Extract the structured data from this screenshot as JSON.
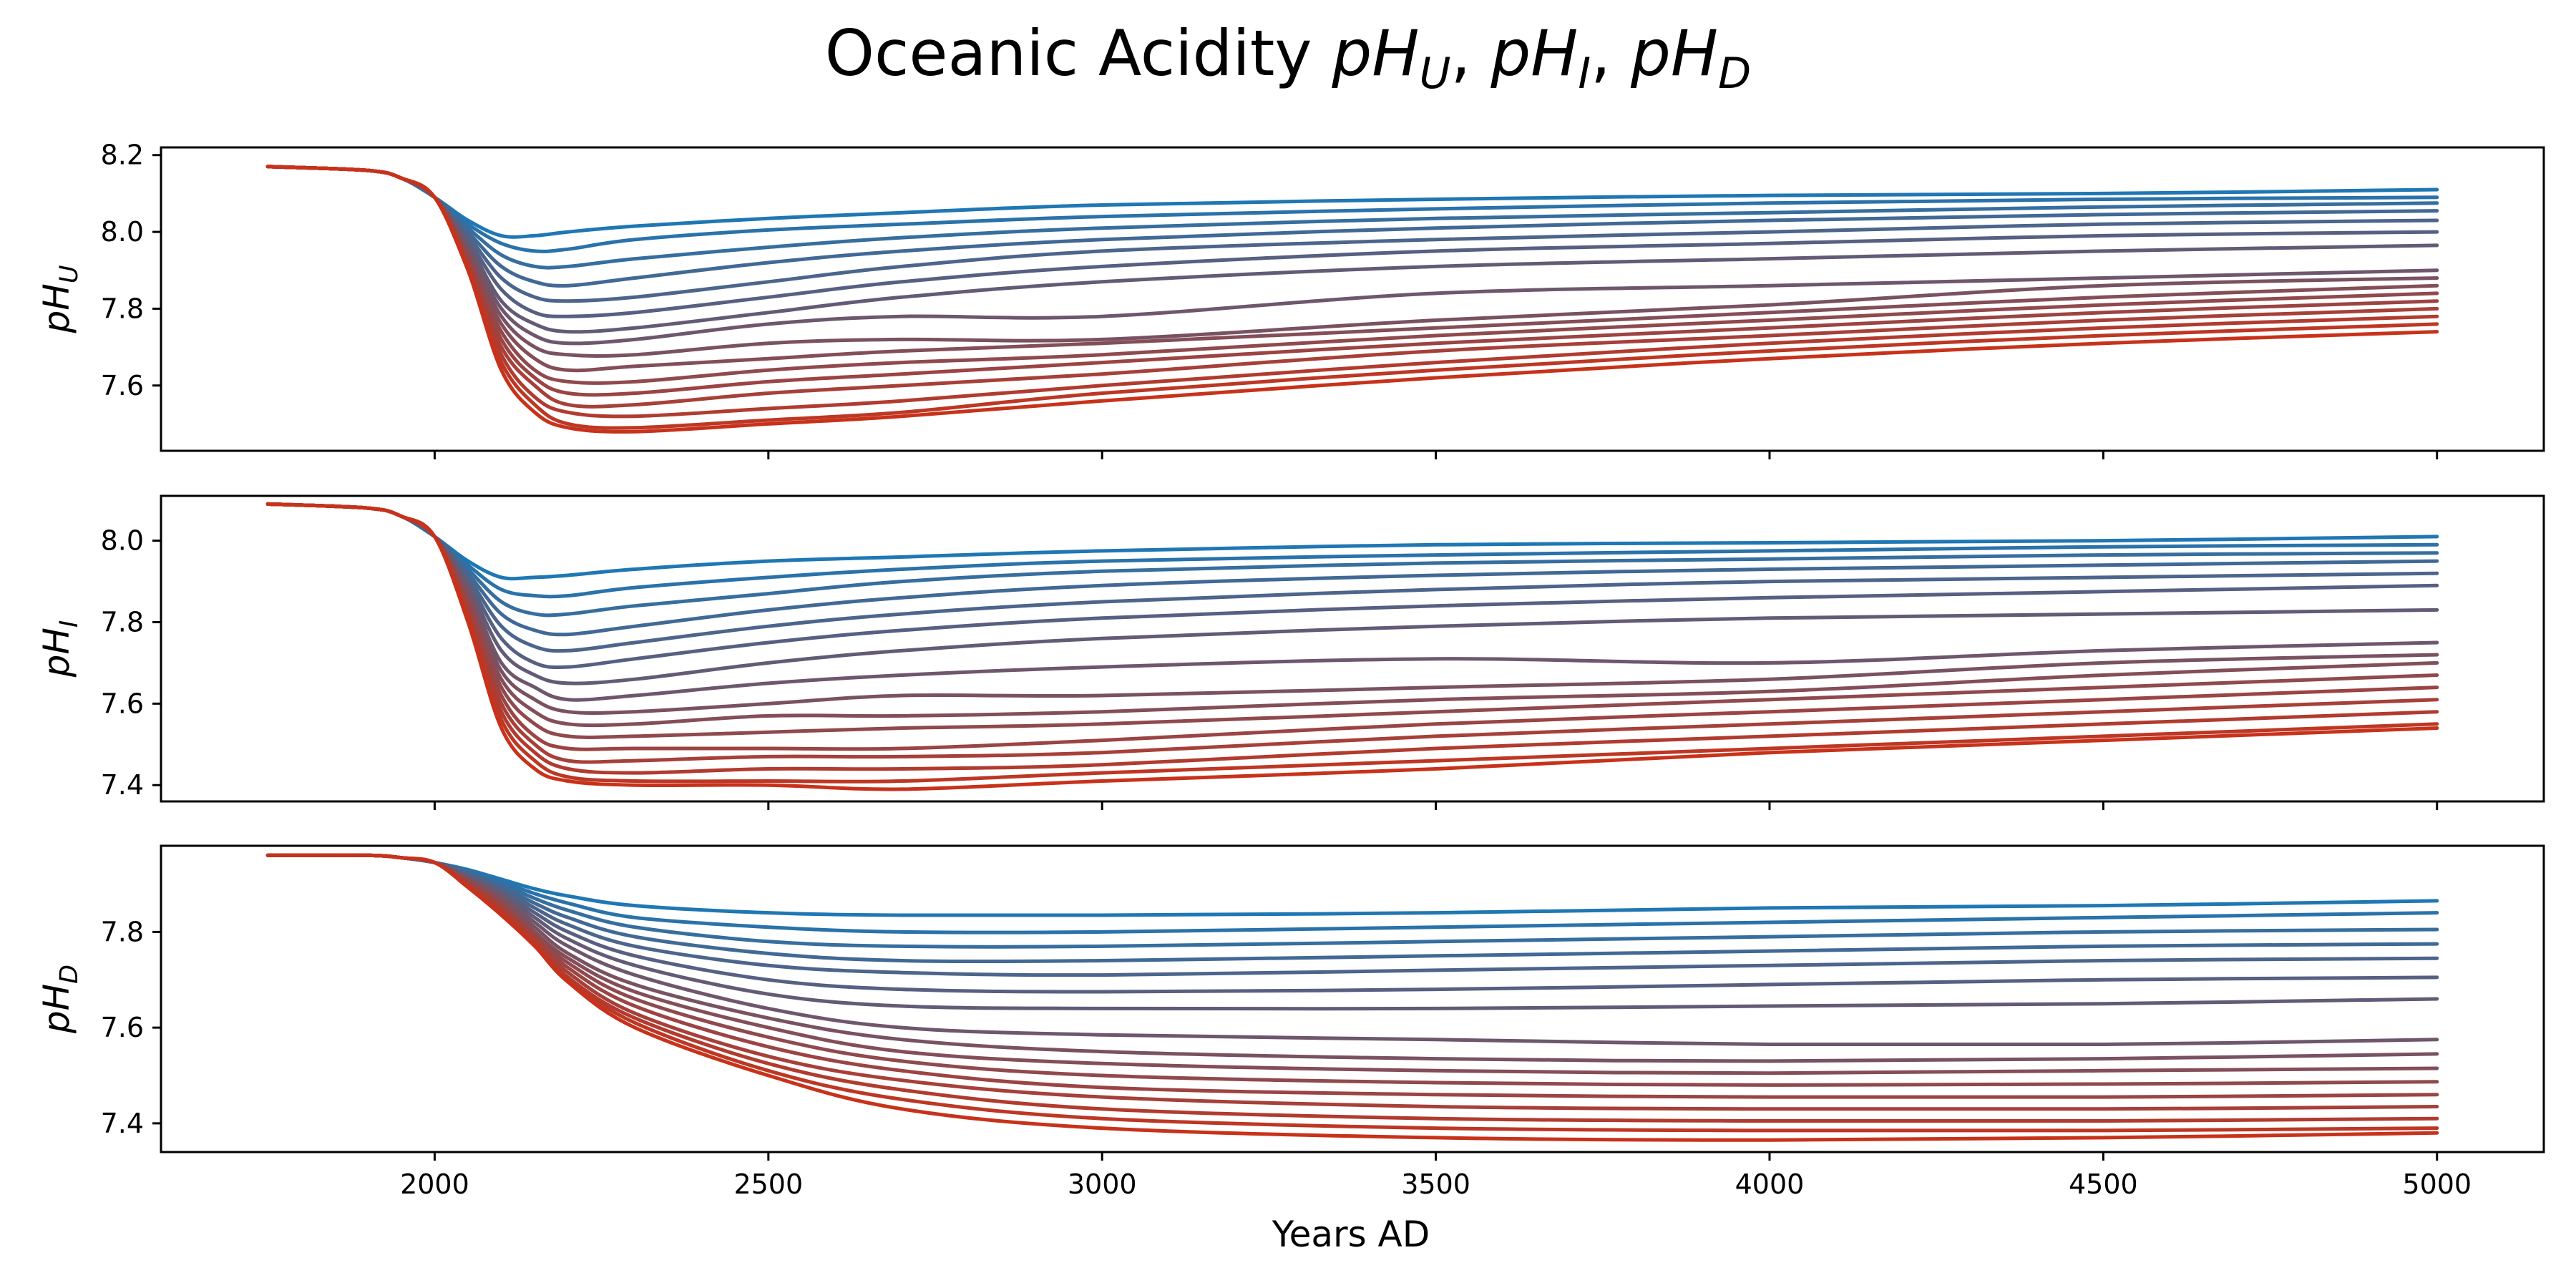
{
  "chart_data": {
    "type": "line",
    "title": "Oceanic Acidity pH_U, pH_I, pH_D",
    "xlabel": "Years AD",
    "xlim": [
      1590,
      5160
    ],
    "xticks": [
      2000,
      2500,
      3000,
      3500,
      4000,
      4500,
      5000
    ],
    "x": [
      1750,
      1900,
      1950,
      2000,
      2050,
      2100,
      2150,
      2200,
      2300,
      2500,
      2700,
      3000,
      3500,
      4000,
      4500,
      5000
    ],
    "color_range": [
      "#1f77b4",
      "#c8321a"
    ],
    "grid": false,
    "legend": "none",
    "subplots": [
      {
        "ylabel_base": "pH",
        "ylabel_sub": "U",
        "ylim": [
          7.43,
          8.22
        ],
        "yticks": [
          "7.6",
          "7.8",
          "8.0",
          "8.2"
        ],
        "series": [
          {
            "values": [
              8.17,
              8.16,
              8.14,
              8.09,
              8.03,
              7.99,
              7.99,
              8.0,
              8.015,
              8.035,
              8.05,
              8.07,
              8.085,
              8.095,
              8.1,
              8.11
            ]
          },
          {
            "values": [
              8.17,
              8.16,
              8.14,
              8.09,
              8.02,
              7.97,
              7.95,
              7.955,
              7.98,
              8.005,
              8.02,
              8.04,
              8.06,
              8.075,
              8.085,
              8.09
            ]
          },
          {
            "values": [
              8.17,
              8.16,
              8.14,
              8.09,
              8.01,
              7.94,
              7.91,
              7.91,
              7.93,
              7.96,
              7.985,
              8.01,
              8.035,
              8.05,
              8.065,
              8.075
            ]
          },
          {
            "values": [
              8.17,
              8.16,
              8.14,
              8.09,
              8.0,
              7.91,
              7.87,
              7.86,
              7.88,
              7.92,
              7.95,
              7.98,
              8.01,
              8.03,
              8.045,
              8.055
            ]
          },
          {
            "values": [
              8.17,
              8.16,
              8.14,
              8.09,
              7.99,
              7.88,
              7.83,
              7.82,
              7.83,
              7.87,
              7.91,
              7.95,
              7.98,
              8.0,
              8.02,
              8.03
            ]
          },
          {
            "values": [
              8.17,
              8.16,
              8.14,
              8.09,
              7.98,
              7.85,
              7.79,
              7.78,
              7.79,
              7.83,
              7.87,
              7.91,
              7.95,
              7.97,
              7.99,
              8.0
            ]
          },
          {
            "values": [
              8.17,
              8.16,
              8.14,
              8.09,
              7.97,
              7.82,
              7.76,
              7.74,
              7.75,
              7.79,
              7.83,
              7.87,
              7.91,
              7.93,
              7.95,
              7.965
            ]
          },
          {
            "values": [
              8.17,
              8.16,
              8.14,
              8.09,
              7.96,
              7.8,
              7.73,
              7.71,
              7.72,
              7.76,
              7.78,
              7.78,
              7.84,
              7.86,
              7.88,
              7.9
            ]
          },
          {
            "values": [
              8.17,
              8.16,
              8.14,
              8.09,
              7.95,
              7.78,
              7.7,
              7.68,
              7.68,
              7.71,
              7.72,
              7.72,
              7.77,
              7.81,
              7.86,
              7.88
            ]
          },
          {
            "values": [
              8.17,
              8.16,
              8.14,
              8.09,
              7.94,
              7.76,
              7.67,
              7.64,
              7.65,
              7.67,
              7.69,
              7.71,
              7.75,
              7.79,
              7.83,
              7.86
            ]
          },
          {
            "values": [
              8.17,
              8.16,
              8.14,
              8.09,
              7.93,
              7.74,
              7.64,
              7.61,
              7.61,
              7.64,
              7.66,
              7.68,
              7.73,
              7.77,
              7.81,
              7.84
            ]
          },
          {
            "values": [
              8.17,
              8.16,
              8.14,
              8.09,
              7.93,
              7.72,
              7.62,
              7.58,
              7.58,
              7.61,
              7.63,
              7.66,
              7.71,
              7.75,
              7.79,
              7.82
            ]
          },
          {
            "values": [
              8.17,
              8.16,
              8.14,
              8.09,
              7.92,
              7.7,
              7.6,
              7.55,
              7.55,
              7.58,
              7.6,
              7.63,
              7.69,
              7.73,
              7.77,
              7.8
            ]
          },
          {
            "values": [
              8.17,
              8.16,
              8.14,
              8.09,
              7.91,
              7.68,
              7.57,
              7.53,
              7.52,
              7.54,
              7.56,
              7.6,
              7.66,
              7.71,
              7.75,
              7.78
            ]
          },
          {
            "values": [
              8.17,
              8.16,
              8.14,
              8.09,
              7.9,
              7.66,
              7.55,
              7.5,
              7.49,
              7.51,
              7.53,
              7.58,
              7.64,
              7.69,
              7.73,
              7.76
            ]
          },
          {
            "values": [
              8.17,
              8.16,
              8.14,
              8.09,
              7.9,
              7.64,
              7.53,
              7.49,
              7.48,
              7.5,
              7.52,
              7.56,
              7.62,
              7.67,
              7.71,
              7.74
            ]
          }
        ]
      },
      {
        "ylabel_base": "pH",
        "ylabel_sub": "I",
        "ylim": [
          7.36,
          8.11
        ],
        "yticks": [
          "7.4",
          "7.6",
          "7.8",
          "8.0"
        ],
        "series": [
          {
            "values": [
              8.09,
              8.08,
              8.06,
              8.01,
              7.95,
              7.91,
              7.91,
              7.915,
              7.93,
              7.95,
              7.96,
              7.975,
              7.99,
              7.995,
              8.0,
              8.01
            ]
          },
          {
            "values": [
              8.09,
              8.08,
              8.06,
              8.01,
              7.94,
              7.88,
              7.865,
              7.865,
              7.885,
              7.91,
              7.93,
              7.95,
              7.965,
              7.975,
              7.985,
              7.99
            ]
          },
          {
            "values": [
              8.09,
              8.08,
              8.06,
              8.01,
              7.93,
              7.85,
              7.82,
              7.82,
              7.84,
              7.87,
              7.9,
              7.925,
              7.945,
              7.955,
              7.965,
              7.97
            ]
          },
          {
            "values": [
              8.09,
              8.08,
              8.06,
              8.01,
              7.92,
              7.82,
              7.78,
              7.77,
              7.79,
              7.83,
              7.86,
              7.89,
              7.915,
              7.93,
              7.94,
              7.95
            ]
          },
          {
            "values": [
              8.09,
              8.08,
              8.06,
              8.01,
              7.91,
              7.79,
              7.74,
              7.73,
              7.75,
              7.79,
              7.82,
              7.85,
              7.88,
              7.9,
              7.91,
              7.92
            ]
          },
          {
            "values": [
              8.09,
              8.08,
              8.06,
              8.01,
              7.9,
              7.76,
              7.7,
              7.69,
              7.71,
              7.75,
              7.78,
              7.81,
              7.84,
              7.86,
              7.875,
              7.89
            ]
          },
          {
            "values": [
              8.09,
              8.08,
              8.06,
              8.01,
              7.89,
              7.73,
              7.67,
              7.65,
              7.66,
              7.7,
              7.73,
              7.76,
              7.79,
              7.81,
              7.82,
              7.83
            ]
          },
          {
            "values": [
              8.09,
              8.08,
              8.06,
              8.01,
              7.88,
              7.7,
              7.64,
              7.61,
              7.62,
              7.65,
              7.67,
              7.69,
              7.71,
              7.7,
              7.73,
              7.75
            ]
          },
          {
            "values": [
              8.09,
              8.08,
              8.06,
              8.01,
              7.87,
              7.68,
              7.61,
              7.58,
              7.58,
              7.6,
              7.62,
              7.62,
              7.64,
              7.66,
              7.7,
              7.72
            ]
          },
          {
            "values": [
              8.09,
              8.08,
              8.06,
              8.01,
              7.86,
              7.66,
              7.58,
              7.55,
              7.55,
              7.57,
              7.57,
              7.58,
              7.61,
              7.63,
              7.67,
              7.7
            ]
          },
          {
            "values": [
              8.09,
              8.08,
              8.06,
              8.01,
              7.85,
              7.64,
              7.55,
              7.52,
              7.52,
              7.53,
              7.54,
              7.55,
              7.58,
              7.61,
              7.64,
              7.67
            ]
          },
          {
            "values": [
              8.09,
              8.08,
              8.06,
              8.01,
              7.84,
              7.62,
              7.52,
              7.49,
              7.49,
              7.49,
              7.49,
              7.51,
              7.55,
              7.58,
              7.61,
              7.64
            ]
          },
          {
            "values": [
              8.09,
              8.08,
              8.06,
              8.01,
              7.83,
              7.6,
              7.5,
              7.46,
              7.46,
              7.47,
              7.47,
              7.48,
              7.52,
              7.55,
              7.58,
              7.61
            ]
          },
          {
            "values": [
              8.09,
              8.08,
              8.06,
              8.01,
              7.82,
              7.58,
              7.48,
              7.44,
              7.43,
              7.44,
              7.44,
              7.45,
              7.49,
              7.52,
              7.55,
              7.58
            ]
          },
          {
            "values": [
              8.09,
              8.08,
              8.06,
              8.01,
              7.81,
              7.56,
              7.46,
              7.42,
              7.41,
              7.41,
              7.41,
              7.43,
              7.46,
              7.49,
              7.52,
              7.55
            ]
          },
          {
            "values": [
              8.09,
              8.08,
              8.06,
              8.01,
              7.8,
              7.54,
              7.44,
              7.41,
              7.4,
              7.4,
              7.39,
              7.41,
              7.44,
              7.48,
              7.51,
              7.54
            ]
          }
        ]
      },
      {
        "ylabel_base": "pH",
        "ylabel_sub": "D",
        "ylim": [
          7.34,
          7.98
        ],
        "yticks": [
          "7.4",
          "7.6",
          "7.8"
        ],
        "series": [
          {
            "values": [
              7.96,
              7.96,
              7.955,
              7.945,
              7.93,
              7.91,
              7.89,
              7.875,
              7.855,
              7.84,
              7.835,
              7.835,
              7.84,
              7.85,
              7.855,
              7.865
            ]
          },
          {
            "values": [
              7.96,
              7.96,
              7.955,
              7.945,
              7.928,
              7.905,
              7.88,
              7.86,
              7.83,
              7.81,
              7.8,
              7.8,
              7.81,
              7.82,
              7.83,
              7.84
            ]
          },
          {
            "values": [
              7.96,
              7.96,
              7.955,
              7.945,
              7.925,
              7.9,
              7.87,
              7.845,
              7.81,
              7.78,
              7.77,
              7.77,
              7.78,
              7.79,
              7.8,
              7.805
            ]
          },
          {
            "values": [
              7.96,
              7.96,
              7.955,
              7.945,
              7.923,
              7.895,
              7.86,
              7.83,
              7.79,
              7.755,
              7.74,
              7.74,
              7.75,
              7.76,
              7.77,
              7.775
            ]
          },
          {
            "values": [
              7.96,
              7.96,
              7.955,
              7.945,
              7.92,
              7.89,
              7.85,
              7.815,
              7.77,
              7.73,
              7.715,
              7.71,
              7.72,
              7.73,
              7.74,
              7.745
            ]
          },
          {
            "values": [
              7.96,
              7.96,
              7.955,
              7.945,
              7.918,
              7.885,
              7.84,
              7.8,
              7.75,
              7.7,
              7.68,
              7.675,
              7.68,
              7.69,
              7.7,
              7.705
            ]
          },
          {
            "values": [
              7.96,
              7.96,
              7.955,
              7.945,
              7.915,
              7.88,
              7.83,
              7.785,
              7.73,
              7.67,
              7.645,
              7.64,
              7.64,
              7.645,
              7.65,
              7.66
            ]
          },
          {
            "values": [
              7.96,
              7.96,
              7.955,
              7.945,
              7.913,
              7.875,
              7.82,
              7.77,
              7.71,
              7.64,
              7.6,
              7.585,
              7.575,
              7.565,
              7.565,
              7.575
            ]
          },
          {
            "values": [
              7.96,
              7.96,
              7.955,
              7.945,
              7.91,
              7.87,
              7.81,
              7.755,
              7.69,
              7.62,
              7.575,
              7.55,
              7.535,
              7.53,
              7.535,
              7.545
            ]
          },
          {
            "values": [
              7.96,
              7.96,
              7.955,
              7.945,
              7.908,
              7.865,
              7.8,
              7.745,
              7.675,
              7.6,
              7.55,
              7.525,
              7.51,
              7.505,
              7.51,
              7.515
            ]
          },
          {
            "values": [
              7.96,
              7.96,
              7.955,
              7.945,
              7.905,
              7.86,
              7.795,
              7.735,
              7.66,
              7.58,
              7.53,
              7.5,
              7.485,
              7.48,
              7.482,
              7.487
            ]
          },
          {
            "values": [
              7.96,
              7.96,
              7.955,
              7.945,
              7.903,
              7.855,
              7.79,
              7.725,
              7.645,
              7.56,
              7.51,
              7.475,
              7.46,
              7.455,
              7.455,
              7.46
            ]
          },
          {
            "values": [
              7.96,
              7.96,
              7.955,
              7.945,
              7.9,
              7.85,
              7.785,
              7.715,
              7.63,
              7.54,
              7.49,
              7.455,
              7.435,
              7.43,
              7.43,
              7.435
            ]
          },
          {
            "values": [
              7.96,
              7.96,
              7.955,
              7.945,
              7.898,
              7.845,
              7.78,
              7.705,
              7.62,
              7.525,
              7.47,
              7.43,
              7.41,
              7.405,
              7.405,
              7.41
            ]
          },
          {
            "values": [
              7.96,
              7.96,
              7.955,
              7.945,
              7.895,
              7.84,
              7.775,
              7.7,
              7.61,
              7.51,
              7.45,
              7.41,
              7.39,
              7.385,
              7.385,
              7.39
            ]
          },
          {
            "values": [
              7.96,
              7.96,
              7.955,
              7.945,
              7.893,
              7.835,
              7.77,
              7.695,
              7.6,
              7.5,
              7.43,
              7.39,
              7.37,
              7.365,
              7.37,
              7.38
            ]
          }
        ]
      }
    ]
  }
}
